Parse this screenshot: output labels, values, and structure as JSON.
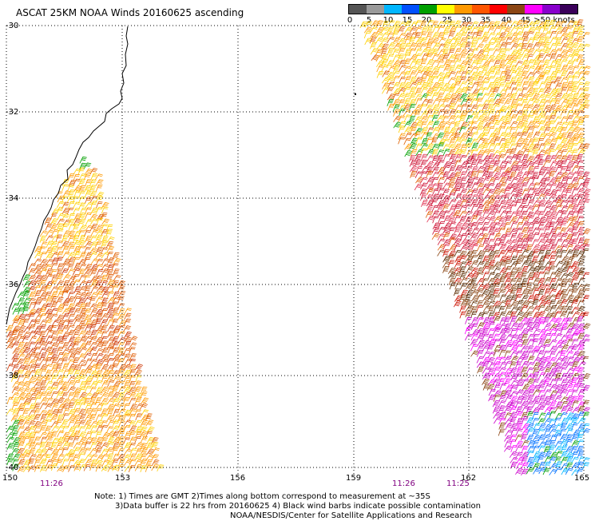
{
  "title": "ASCAT 25KM NOAA Winds 20160625 ascending",
  "legend": {
    "colors": [
      "#555555",
      "#9a9a9a",
      "#00b6ff",
      "#0050ff",
      "#00a000",
      "#ffff00",
      "#ff9900",
      "#ff5500",
      "#ff0000",
      "#8b4513",
      "#ff00ff",
      "#8800cc",
      "#3a005a"
    ],
    "labels": [
      "0",
      "5",
      "10",
      "15",
      "20",
      "25",
      "30",
      "35",
      "40",
      "45",
      ">50 knots"
    ]
  },
  "axes": {
    "lat_labels": [
      "-30",
      "-32",
      "-34",
      "-36",
      "-38",
      "-40"
    ],
    "lon_labels": [
      "150",
      "153",
      "156",
      "159",
      "162",
      "165"
    ]
  },
  "time_labels": [
    "11:26",
    "11:26",
    "11:25"
  ],
  "note": {
    "line1": "Note: 1) Times are GMT 2)Times along bottom correspond to measurement at ~35S",
    "line2": "3)Data buffer is 22 hrs from 20160625 4) Black wind barbs indicate possible contamination",
    "line3": "NOAA/NESDIS/Center for Satellite Applications and Research"
  }
}
